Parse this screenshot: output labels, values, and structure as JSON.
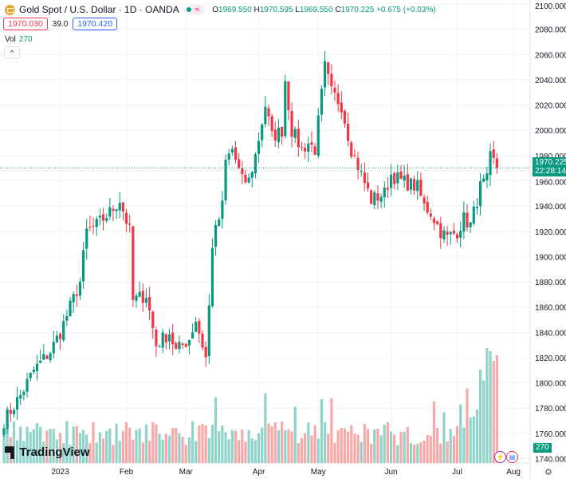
{
  "header": {
    "title": "Gold Spot / U.S. Dollar · 1D · OANDA",
    "o_label": "O",
    "o": "1969.550",
    "h_label": "H",
    "h": "1970.595",
    "l_label": "L",
    "l": "1969.550",
    "c_label": "C",
    "c": "1970.225",
    "change": "+0.675 (+0.03%)",
    "approx": "≈"
  },
  "trade": {
    "sell": "1970.030",
    "spread": "39.0",
    "buy": "1970.420"
  },
  "volume": {
    "label": "Vol",
    "value": "270"
  },
  "collapse": "^",
  "logo": "TradingView",
  "price_label": {
    "price": "1970.225",
    "countdown": "22:28:14"
  },
  "vol_label": "270",
  "colors": {
    "up": "#089981",
    "down": "#f23645",
    "vol_up": "#8fd3c9",
    "vol_down": "#f7a9a7"
  },
  "chart_data": {
    "type": "candlestick",
    "symbol": "XAUUSD",
    "bars": 150,
    "close_keypoints": [
      [
        0,
        1770
      ],
      [
        5,
        1790
      ],
      [
        9,
        1810
      ],
      [
        14,
        1825
      ],
      [
        17,
        1840
      ],
      [
        20,
        1860
      ],
      [
        23,
        1880
      ],
      [
        25,
        1920
      ],
      [
        28,
        1925
      ],
      [
        32,
        1935
      ],
      [
        35,
        1945
      ],
      [
        38,
        1920
      ],
      [
        39,
        1865
      ],
      [
        43,
        1870
      ],
      [
        46,
        1830
      ],
      [
        50,
        1840
      ],
      [
        52,
        1825
      ],
      [
        56,
        1835
      ],
      [
        58,
        1850
      ],
      [
        61,
        1820
      ],
      [
        62,
        1860
      ],
      [
        63,
        1910
      ],
      [
        66,
        1940
      ],
      [
        67,
        1975
      ],
      [
        69,
        1985
      ],
      [
        72,
        1960
      ],
      [
        74,
        1960
      ],
      [
        76,
        1980
      ],
      [
        79,
        2020
      ],
      [
        81,
        1995
      ],
      [
        84,
        2000
      ],
      [
        85,
        2040
      ],
      [
        87,
        2000
      ],
      [
        90,
        1985
      ],
      [
        92,
        1990
      ],
      [
        94,
        1985
      ],
      [
        97,
        2050
      ],
      [
        99,
        2030
      ],
      [
        102,
        2020
      ],
      [
        105,
        1985
      ],
      [
        108,
        1965
      ],
      [
        111,
        1945
      ],
      [
        115,
        1950
      ],
      [
        117,
        1965
      ],
      [
        120,
        1960
      ],
      [
        125,
        1955
      ],
      [
        127,
        1940
      ],
      [
        129,
        1935
      ],
      [
        132,
        1920
      ],
      [
        134,
        1915
      ],
      [
        137,
        1920
      ],
      [
        139,
        1930
      ],
      [
        141,
        1925
      ],
      [
        144,
        1955
      ],
      [
        146,
        1960
      ],
      [
        147,
        1978
      ],
      [
        148,
        1975
      ],
      [
        149,
        1970
      ]
    ],
    "ylim": [
      1740,
      2100
    ],
    "yticks": [
      "2100.000",
      "2080.000",
      "2060.000",
      "2040.000",
      "2020.000",
      "2000.000",
      "1980.000",
      "1960.000",
      "1940.000",
      "1920.000",
      "1900.000",
      "1880.000",
      "1860.000",
      "1840.000",
      "1820.000",
      "1800.000",
      "1780.000",
      "1760.000",
      "1740.000"
    ],
    "xticks": [
      {
        "label": "2023",
        "bar": 17
      },
      {
        "label": "Feb",
        "bar": 37
      },
      {
        "label": "Mar",
        "bar": 55
      },
      {
        "label": "Apr",
        "bar": 77
      },
      {
        "label": "May",
        "bar": 95
      },
      {
        "label": "Jun",
        "bar": 117
      },
      {
        "label": "Jul",
        "bar": 137
      },
      {
        "label": "Aug",
        "bar": 154
      }
    ],
    "last_volume": 270
  }
}
